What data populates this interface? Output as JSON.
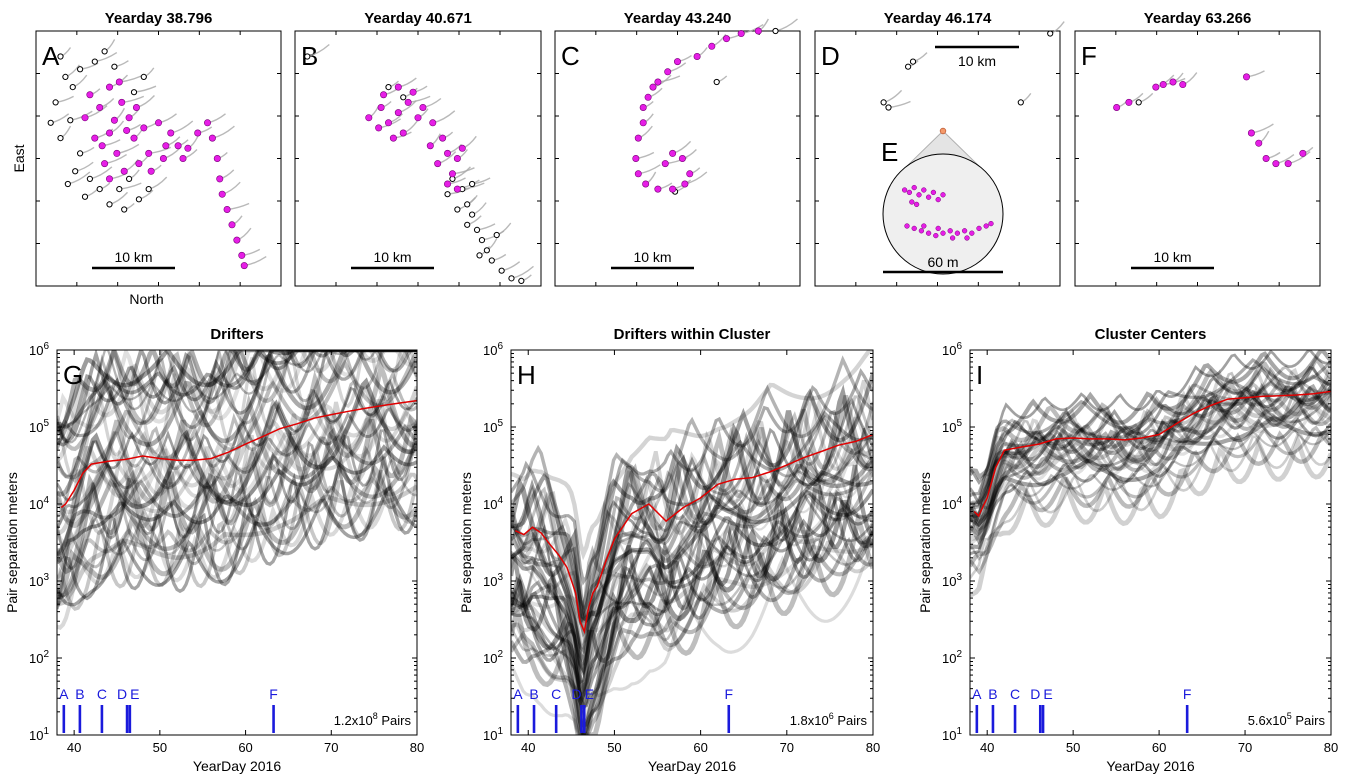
{
  "colors": {
    "drifter_fill": "#e61ee6",
    "drifter_open": "#000000",
    "track": "#a8a8a8",
    "median_line": "#e00000",
    "marker": "#1a1adc"
  },
  "chart_data": [
    {
      "type": "scatter",
      "id": "A",
      "letter": "A",
      "title": "Yearday 38.796",
      "xlabel": "North",
      "ylabel": "East",
      "scale_bar": "10 km",
      "filled_points": [
        [
          0.22,
          0.25
        ],
        [
          0.26,
          0.3
        ],
        [
          0.3,
          0.22
        ],
        [
          0.35,
          0.28
        ],
        [
          0.38,
          0.34
        ],
        [
          0.3,
          0.4
        ],
        [
          0.27,
          0.45
        ],
        [
          0.33,
          0.48
        ],
        [
          0.4,
          0.42
        ],
        [
          0.44,
          0.38
        ],
        [
          0.5,
          0.36
        ],
        [
          0.55,
          0.4
        ],
        [
          0.58,
          0.45
        ],
        [
          0.6,
          0.5
        ],
        [
          0.52,
          0.5
        ],
        [
          0.46,
          0.48
        ],
        [
          0.42,
          0.52
        ],
        [
          0.36,
          0.55
        ],
        [
          0.3,
          0.58
        ],
        [
          0.28,
          0.52
        ],
        [
          0.62,
          0.46
        ],
        [
          0.66,
          0.4
        ],
        [
          0.7,
          0.36
        ],
        [
          0.72,
          0.42
        ],
        [
          0.74,
          0.5
        ],
        [
          0.75,
          0.58
        ],
        [
          0.76,
          0.64
        ],
        [
          0.78,
          0.7
        ],
        [
          0.8,
          0.76
        ],
        [
          0.82,
          0.82
        ],
        [
          0.84,
          0.88
        ],
        [
          0.85,
          0.92
        ],
        [
          0.32,
          0.35
        ],
        [
          0.37,
          0.39
        ],
        [
          0.24,
          0.42
        ],
        [
          0.2,
          0.34
        ],
        [
          0.47,
          0.55
        ],
        [
          0.53,
          0.45
        ],
        [
          0.41,
          0.3
        ],
        [
          0.34,
          0.2
        ]
      ],
      "open_points": [
        [
          0.1,
          0.1
        ],
        [
          0.12,
          0.18
        ],
        [
          0.08,
          0.28
        ],
        [
          0.14,
          0.35
        ],
        [
          0.1,
          0.42
        ],
        [
          0.18,
          0.48
        ],
        [
          0.16,
          0.55
        ],
        [
          0.22,
          0.58
        ],
        [
          0.26,
          0.62
        ],
        [
          0.2,
          0.65
        ],
        [
          0.3,
          0.68
        ],
        [
          0.34,
          0.62
        ],
        [
          0.38,
          0.58
        ],
        [
          0.15,
          0.22
        ],
        [
          0.18,
          0.15
        ],
        [
          0.24,
          0.12
        ],
        [
          0.28,
          0.08
        ],
        [
          0.32,
          0.14
        ],
        [
          0.06,
          0.36
        ],
        [
          0.13,
          0.6
        ],
        [
          0.36,
          0.7
        ],
        [
          0.42,
          0.66
        ],
        [
          0.46,
          0.62
        ],
        [
          0.4,
          0.24
        ],
        [
          0.44,
          0.18
        ]
      ]
    },
    {
      "type": "scatter",
      "id": "B",
      "letter": "B",
      "title": "Yearday 40.671",
      "scale_bar": "10 km",
      "filled_points": [
        [
          0.35,
          0.3
        ],
        [
          0.38,
          0.36
        ],
        [
          0.42,
          0.32
        ],
        [
          0.46,
          0.28
        ],
        [
          0.5,
          0.34
        ],
        [
          0.44,
          0.4
        ],
        [
          0.4,
          0.42
        ],
        [
          0.34,
          0.38
        ],
        [
          0.3,
          0.34
        ],
        [
          0.48,
          0.24
        ],
        [
          0.52,
          0.3
        ],
        [
          0.56,
          0.36
        ],
        [
          0.6,
          0.42
        ],
        [
          0.62,
          0.48
        ],
        [
          0.58,
          0.52
        ],
        [
          0.64,
          0.56
        ],
        [
          0.66,
          0.5
        ],
        [
          0.68,
          0.46
        ],
        [
          0.62,
          0.6
        ],
        [
          0.66,
          0.62
        ],
        [
          0.55,
          0.45
        ],
        [
          0.36,
          0.25
        ],
        [
          0.42,
          0.22
        ]
      ],
      "open_points": [
        [
          0.05,
          0.1
        ],
        [
          0.38,
          0.22
        ],
        [
          0.44,
          0.26
        ],
        [
          0.64,
          0.58
        ],
        [
          0.68,
          0.62
        ],
        [
          0.7,
          0.68
        ],
        [
          0.72,
          0.72
        ],
        [
          0.74,
          0.78
        ],
        [
          0.76,
          0.82
        ],
        [
          0.78,
          0.86
        ],
        [
          0.8,
          0.9
        ],
        [
          0.84,
          0.94
        ],
        [
          0.88,
          0.97
        ],
        [
          0.92,
          0.98
        ],
        [
          0.7,
          0.76
        ],
        [
          0.66,
          0.7
        ],
        [
          0.62,
          0.64
        ],
        [
          0.75,
          0.88
        ],
        [
          0.82,
          0.8
        ],
        [
          0.72,
          0.6
        ]
      ]
    },
    {
      "type": "scatter",
      "id": "C",
      "letter": "C",
      "title": "Yearday 43.240",
      "scale_bar": "10 km",
      "filled_points": [
        [
          0.36,
          0.3
        ],
        [
          0.38,
          0.26
        ],
        [
          0.4,
          0.22
        ],
        [
          0.42,
          0.2
        ],
        [
          0.36,
          0.36
        ],
        [
          0.34,
          0.42
        ],
        [
          0.33,
          0.5
        ],
        [
          0.34,
          0.56
        ],
        [
          0.37,
          0.6
        ],
        [
          0.42,
          0.62
        ],
        [
          0.48,
          0.62
        ],
        [
          0.53,
          0.6
        ],
        [
          0.55,
          0.56
        ],
        [
          0.52,
          0.5
        ],
        [
          0.48,
          0.48
        ],
        [
          0.45,
          0.52
        ],
        [
          0.58,
          0.1
        ],
        [
          0.64,
          0.06
        ],
        [
          0.7,
          0.03
        ],
        [
          0.76,
          0.01
        ],
        [
          0.83,
          0.0
        ],
        [
          0.5,
          0.12
        ],
        [
          0.46,
          0.16
        ]
      ],
      "open_points": [
        [
          0.9,
          0.0
        ],
        [
          0.66,
          0.2
        ],
        [
          0.49,
          0.63
        ]
      ]
    },
    {
      "type": "scatter",
      "id": "D",
      "letter": "D",
      "title": "Yearday 46.174",
      "scale_bar": "10 km",
      "open_points": [
        [
          0.38,
          0.14
        ],
        [
          0.4,
          0.12
        ],
        [
          0.28,
          0.28
        ],
        [
          0.3,
          0.3
        ],
        [
          0.84,
          0.28
        ],
        [
          0.96,
          0.01
        ]
      ],
      "inset": {
        "letter": "E",
        "scale_bar": "60 m",
        "filled_points": [
          [
            0.18,
            0.3
          ],
          [
            0.22,
            0.32
          ],
          [
            0.26,
            0.28
          ],
          [
            0.3,
            0.34
          ],
          [
            0.34,
            0.3
          ],
          [
            0.38,
            0.36
          ],
          [
            0.42,
            0.32
          ],
          [
            0.46,
            0.38
          ],
          [
            0.5,
            0.34
          ],
          [
            0.24,
            0.4
          ],
          [
            0.28,
            0.42
          ],
          [
            0.2,
            0.6
          ],
          [
            0.26,
            0.62
          ],
          [
            0.32,
            0.64
          ],
          [
            0.38,
            0.66
          ],
          [
            0.44,
            0.68
          ],
          [
            0.5,
            0.66
          ],
          [
            0.56,
            0.64
          ],
          [
            0.62,
            0.66
          ],
          [
            0.68,
            0.64
          ],
          [
            0.74,
            0.66
          ],
          [
            0.8,
            0.62
          ],
          [
            0.86,
            0.6
          ],
          [
            0.9,
            0.58
          ],
          [
            0.34,
            0.6
          ],
          [
            0.46,
            0.62
          ],
          [
            0.58,
            0.7
          ],
          [
            0.7,
            0.7
          ]
        ]
      }
    },
    {
      "type": "scatter",
      "id": "F",
      "letter": "F",
      "title": "Yearday 63.266",
      "scale_bar": "10 km",
      "filled_points": [
        [
          0.17,
          0.3
        ],
        [
          0.22,
          0.28
        ],
        [
          0.33,
          0.22
        ],
        [
          0.36,
          0.21
        ],
        [
          0.4,
          0.2
        ],
        [
          0.44,
          0.21
        ],
        [
          0.7,
          0.18
        ],
        [
          0.72,
          0.4
        ],
        [
          0.75,
          0.44
        ],
        [
          0.78,
          0.5
        ],
        [
          0.82,
          0.52
        ],
        [
          0.87,
          0.52
        ],
        [
          0.93,
          0.48
        ]
      ],
      "open_points": [
        [
          0.26,
          0.28
        ]
      ]
    },
    {
      "type": "heatmap",
      "id": "G",
      "letter": "G",
      "title": "Drifters",
      "xlabel": "YearDay 2016",
      "ylabel": "Pair separation meters",
      "xlim": [
        38,
        80
      ],
      "ylim": [
        10,
        1000000
      ],
      "yscale": "log",
      "xticks": [
        40,
        50,
        60,
        70,
        80
      ],
      "yticks": [
        1,
        2,
        3,
        4,
        5,
        6
      ],
      "ytick_base": "10",
      "pairs_coef": "1.2x10",
      "pairs_exp": "8",
      "pairs_word": "Pairs",
      "median": {
        "x": [
          38.5,
          39,
          40,
          41,
          42,
          44,
          46,
          48,
          50,
          52,
          54,
          56,
          58,
          60,
          62,
          64,
          66,
          68,
          70,
          72,
          74,
          76,
          78,
          80
        ],
        "y": [
          9000,
          10000,
          15000,
          25000,
          33000,
          36000,
          38000,
          42000,
          39000,
          37000,
          37000,
          39000,
          47000,
          60000,
          75000,
          95000,
          110000,
          130000,
          145000,
          160000,
          175000,
          190000,
          205000,
          220000
        ]
      }
    },
    {
      "type": "heatmap",
      "id": "H",
      "letter": "H",
      "title": "Drifters within Cluster",
      "xlabel": "YearDay 2016",
      "ylabel": "Pair separation meters",
      "xlim": [
        38,
        80
      ],
      "ylim": [
        10,
        1000000
      ],
      "yscale": "log",
      "xticks": [
        40,
        50,
        60,
        70,
        80
      ],
      "yticks": [
        1,
        2,
        3,
        4,
        5,
        6
      ],
      "ytick_base": "10",
      "pairs_coef": "1.8x10",
      "pairs_exp": "6",
      "pairs_word": "Pairs",
      "median": {
        "x": [
          38.5,
          39.5,
          40.5,
          41.5,
          42.5,
          43.5,
          44.5,
          45.5,
          46.0,
          46.5,
          47.0,
          47.5,
          48,
          49,
          50,
          52,
          54,
          56,
          58,
          60,
          62,
          64,
          66,
          68,
          70,
          72,
          74,
          76,
          78,
          80
        ],
        "y": [
          4500,
          4000,
          5000,
          4200,
          3000,
          2200,
          1500,
          700,
          300,
          220,
          450,
          700,
          850,
          1800,
          3500,
          7500,
          10000,
          6000,
          9000,
          12000,
          18000,
          21000,
          22000,
          26000,
          32000,
          40000,
          48000,
          58000,
          65000,
          80000
        ]
      }
    },
    {
      "type": "heatmap",
      "id": "I",
      "letter": "I",
      "title": "Cluster Centers",
      "xlabel": "YearDay 2016",
      "ylabel": "Pair separation meters",
      "xlim": [
        38,
        80
      ],
      "ylim": [
        10,
        1000000
      ],
      "yscale": "log",
      "xticks": [
        40,
        50,
        60,
        70,
        80
      ],
      "yticks": [
        1,
        2,
        3,
        4,
        5,
        6
      ],
      "ytick_base": "10",
      "pairs_coef": "5.6x10",
      "pairs_exp": "5",
      "pairs_word": "Pairs",
      "median": {
        "x": [
          38.5,
          39,
          40,
          41,
          42,
          44,
          46,
          48,
          50,
          52,
          54,
          56,
          58,
          60,
          62,
          64,
          66,
          68,
          70,
          72,
          74,
          76,
          78,
          80
        ],
        "y": [
          8000,
          7000,
          12000,
          30000,
          50000,
          55000,
          60000,
          70000,
          72000,
          70000,
          70000,
          68000,
          72000,
          80000,
          110000,
          150000,
          190000,
          230000,
          240000,
          250000,
          255000,
          260000,
          270000,
          290000
        ]
      }
    }
  ],
  "yearday_markers": [
    {
      "label": "A",
      "x": 38.796
    },
    {
      "label": "B",
      "x": 40.671
    },
    {
      "label": "C",
      "x": 43.24
    },
    {
      "label": "D",
      "x": 46.174
    },
    {
      "label": "E",
      "x": 46.5
    },
    {
      "label": "F",
      "x": 63.266
    }
  ]
}
